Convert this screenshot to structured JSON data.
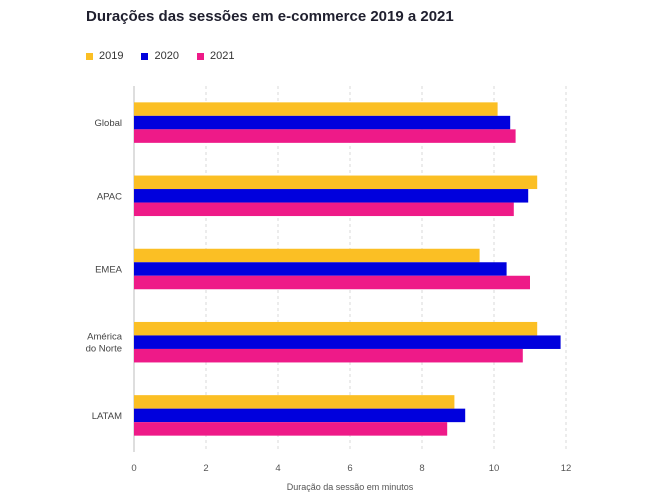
{
  "chart_data": {
    "type": "bar",
    "orientation": "horizontal",
    "title": "Durações das sessões em e-commerce 2019 a 2021",
    "xlabel": "Duração da sessão em minutos",
    "ylabel": "",
    "xlim": [
      0,
      12
    ],
    "xticks": [
      "0",
      "2",
      "4",
      "6",
      "8",
      "10",
      "12"
    ],
    "grid": "vertical-dashed",
    "legend_position": "top-left",
    "categories": [
      {
        "lines": [
          "Global"
        ]
      },
      {
        "lines": [
          "APAC"
        ]
      },
      {
        "lines": [
          "EMEA"
        ]
      },
      {
        "lines": [
          "América",
          "do Norte"
        ]
      },
      {
        "lines": [
          "LATAM"
        ]
      }
    ],
    "series": [
      {
        "name": "2019",
        "color": "#fbbf24",
        "values": [
          10.1,
          11.2,
          9.6,
          11.2,
          8.9
        ]
      },
      {
        "name": "2020",
        "color": "#0000dd",
        "values": [
          10.45,
          10.95,
          10.35,
          11.85,
          9.2
        ]
      },
      {
        "name": "2021",
        "color": "#ee1a88",
        "values": [
          10.6,
          10.55,
          11.0,
          10.8,
          8.7
        ]
      }
    ]
  }
}
